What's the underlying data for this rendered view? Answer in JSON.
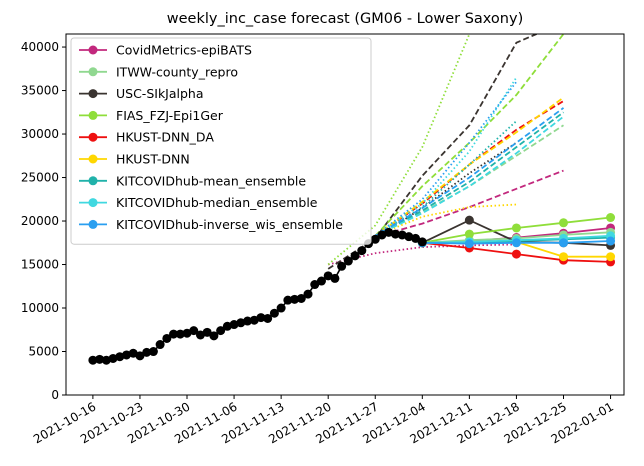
{
  "chart_data": {
    "type": "line",
    "title": "weekly_inc_case forecast (GM06 - Lower Saxony)",
    "xlabel": "",
    "ylabel": "",
    "ylim": [
      0,
      41500
    ],
    "xlim_days": [
      "2021-10-12",
      "2022-01-03"
    ],
    "x_ticks": [
      "2021-10-16",
      "2021-10-23",
      "2021-10-30",
      "2021-11-06",
      "2021-11-13",
      "2021-11-20",
      "2021-11-27",
      "2021-12-04",
      "2021-12-11",
      "2021-12-18",
      "2021-12-25",
      "2022-01-01"
    ],
    "y_ticks": [
      0,
      5000,
      10000,
      15000,
      20000,
      25000,
      30000,
      35000,
      40000
    ],
    "grid": false,
    "legend_position": "upper-left",
    "truth": {
      "color": "#000000",
      "points": [
        [
          "2021-10-16",
          4000
        ],
        [
          "2021-10-17",
          4100
        ],
        [
          "2021-10-18",
          4000
        ],
        [
          "2021-10-19",
          4200
        ],
        [
          "2021-10-20",
          4400
        ],
        [
          "2021-10-21",
          4600
        ],
        [
          "2021-10-22",
          4800
        ],
        [
          "2021-10-23",
          4500
        ],
        [
          "2021-10-24",
          4900
        ],
        [
          "2021-10-25",
          5000
        ],
        [
          "2021-10-26",
          5800
        ],
        [
          "2021-10-27",
          6500
        ],
        [
          "2021-10-28",
          7000
        ],
        [
          "2021-10-29",
          7000
        ],
        [
          "2021-10-30",
          7100
        ],
        [
          "2021-10-31",
          7400
        ],
        [
          "2021-11-01",
          6900
        ],
        [
          "2021-11-02",
          7200
        ],
        [
          "2021-11-03",
          6800
        ],
        [
          "2021-11-04",
          7400
        ],
        [
          "2021-11-05",
          7900
        ],
        [
          "2021-11-06",
          8100
        ],
        [
          "2021-11-07",
          8300
        ],
        [
          "2021-11-08",
          8500
        ],
        [
          "2021-11-09",
          8600
        ],
        [
          "2021-11-10",
          8900
        ],
        [
          "2021-11-11",
          8800
        ],
        [
          "2021-11-12",
          9400
        ],
        [
          "2021-11-13",
          10000
        ],
        [
          "2021-11-14",
          10900
        ],
        [
          "2021-11-15",
          11000
        ],
        [
          "2021-11-16",
          11100
        ],
        [
          "2021-11-17",
          11600
        ],
        [
          "2021-11-18",
          12700
        ],
        [
          "2021-11-19",
          13100
        ],
        [
          "2021-11-20",
          13700
        ],
        [
          "2021-11-21",
          13400
        ],
        [
          "2021-11-22",
          14800
        ],
        [
          "2021-11-23",
          15400
        ],
        [
          "2021-11-24",
          16000
        ],
        [
          "2021-11-25",
          16600
        ],
        [
          "2021-11-26",
          17400
        ],
        [
          "2021-11-27",
          17900
        ],
        [
          "2021-11-28",
          18400
        ],
        [
          "2021-11-29",
          18700
        ],
        [
          "2021-11-30",
          18500
        ],
        [
          "2021-12-01",
          18400
        ],
        [
          "2021-12-02",
          18200
        ],
        [
          "2021-12-03",
          18000
        ],
        [
          "2021-12-04",
          17600
        ]
      ]
    },
    "series": [
      {
        "name": "CovidMetrics-epiBATS",
        "color": "#c2287d",
        "actual": [
          [
            "2021-12-04",
            17500
          ],
          [
            "2021-12-11",
            17700
          ],
          [
            "2021-12-18",
            18100
          ],
          [
            "2021-12-25",
            18600
          ],
          [
            "2022-01-01",
            19200
          ]
        ],
        "dashed": [
          [
            "2021-11-27",
            18200
          ],
          [
            "2021-12-04",
            19700
          ],
          [
            "2021-12-11",
            21600
          ],
          [
            "2021-12-18",
            23700
          ],
          [
            "2021-12-25",
            25800
          ]
        ],
        "dotted": [
          [
            "2021-11-20",
            15000
          ],
          [
            "2021-11-27",
            16300
          ],
          [
            "2021-12-04",
            17000
          ],
          [
            "2021-12-11",
            17200
          ],
          [
            "2021-12-18",
            17300
          ]
        ]
      },
      {
        "name": "ITWW-county_repro",
        "color": "#90d890",
        "actual": [
          [
            "2021-12-04",
            17500
          ],
          [
            "2021-12-11",
            17800
          ],
          [
            "2021-12-18",
            18000
          ],
          [
            "2021-12-25",
            18400
          ],
          [
            "2022-01-01",
            18700
          ]
        ],
        "dashed": [
          [
            "2021-11-27",
            18300
          ],
          [
            "2021-12-04",
            21000
          ],
          [
            "2021-12-11",
            24000
          ],
          [
            "2021-12-18",
            27500
          ],
          [
            "2021-12-25",
            31000
          ]
        ],
        "dotted": []
      },
      {
        "name": "USC-SIkJalpha",
        "color": "#3a3430",
        "actual": [
          [
            "2021-12-04",
            17500
          ],
          [
            "2021-12-11",
            20100
          ],
          [
            "2021-12-18",
            17600
          ],
          [
            "2021-12-25",
            17500
          ],
          [
            "2022-01-01",
            17200
          ]
        ],
        "dashed": [
          [
            "2021-11-20",
            14500
          ],
          [
            "2021-11-27",
            18000
          ],
          [
            "2021-12-04",
            25200
          ],
          [
            "2021-12-11",
            31000
          ],
          [
            "2021-12-18",
            40500
          ],
          [
            "2021-12-21",
            41500
          ]
        ],
        "dotted": [
          [
            "2021-11-27",
            18000
          ],
          [
            "2021-12-04",
            21500
          ],
          [
            "2021-12-11",
            25500
          ],
          [
            "2021-12-18",
            29000
          ]
        ]
      },
      {
        "name": "FIAS_FZJ-Epi1Ger",
        "color": "#8fde3a",
        "actual": [
          [
            "2021-12-04",
            17500
          ],
          [
            "2021-12-11",
            18500
          ],
          [
            "2021-12-18",
            19200
          ],
          [
            "2021-12-25",
            19800
          ],
          [
            "2022-01-01",
            20400
          ]
        ],
        "dashed": [
          [
            "2021-11-27",
            18300
          ],
          [
            "2021-12-04",
            24000
          ],
          [
            "2021-12-11",
            29000
          ],
          [
            "2021-12-18",
            34500
          ],
          [
            "2021-12-25",
            41500
          ]
        ],
        "dotted": [
          [
            "2021-11-20",
            15000
          ],
          [
            "2021-11-27",
            19500
          ],
          [
            "2021-12-04",
            28500
          ],
          [
            "2021-12-11",
            41500
          ]
        ]
      },
      {
        "name": "HKUST-DNN_DA",
        "color": "#ee1010",
        "actual": [
          [
            "2021-12-04",
            17500
          ],
          [
            "2021-12-11",
            16900
          ],
          [
            "2021-12-18",
            16200
          ],
          [
            "2021-12-25",
            15500
          ],
          [
            "2022-01-01",
            15300
          ]
        ],
        "dashed": [
          [
            "2021-11-27",
            18300
          ],
          [
            "2021-12-04",
            22000
          ],
          [
            "2021-12-11",
            26500
          ],
          [
            "2021-12-18",
            30500
          ],
          [
            "2021-12-25",
            33800
          ]
        ],
        "dotted": []
      },
      {
        "name": "HKUST-DNN",
        "color": "#ffd700",
        "actual": [
          [
            "2021-12-04",
            17500
          ],
          [
            "2021-12-11",
            17500
          ],
          [
            "2021-12-18",
            17600
          ],
          [
            "2021-12-25",
            15900
          ],
          [
            "2022-01-01",
            15900
          ]
        ],
        "dashed": [
          [
            "2021-11-27",
            18300
          ],
          [
            "2021-12-04",
            22200
          ],
          [
            "2021-12-11",
            26500
          ],
          [
            "2021-12-18",
            30200
          ],
          [
            "2021-12-25",
            34200
          ]
        ],
        "dotted": [
          [
            "2021-11-27",
            18300
          ],
          [
            "2021-12-04",
            20500
          ],
          [
            "2021-12-11",
            21600
          ],
          [
            "2021-12-18",
            21900
          ]
        ]
      },
      {
        "name": "KITCOVIDhub-mean_ensemble",
        "color": "#20b2aa",
        "actual": [
          [
            "2021-12-04",
            17500
          ],
          [
            "2021-12-11",
            17500
          ],
          [
            "2021-12-18",
            17700
          ],
          [
            "2021-12-25",
            17900
          ],
          [
            "2022-01-01",
            18100
          ]
        ],
        "dashed": [
          [
            "2021-11-27",
            18300
          ],
          [
            "2021-12-04",
            21200
          ],
          [
            "2021-12-11",
            24500
          ],
          [
            "2021-12-18",
            28500
          ],
          [
            "2021-12-25",
            32500
          ]
        ],
        "dotted": [
          [
            "2021-11-27",
            18300
          ],
          [
            "2021-12-04",
            21600
          ],
          [
            "2021-12-11",
            26500
          ],
          [
            "2021-12-18",
            31500
          ]
        ]
      },
      {
        "name": "KITCOVIDhub-median_ensemble",
        "color": "#40d8e0",
        "actual": [
          [
            "2021-12-04",
            17500
          ],
          [
            "2021-12-11",
            17600
          ],
          [
            "2021-12-18",
            17800
          ],
          [
            "2021-12-25",
            18000
          ],
          [
            "2022-01-01",
            18300
          ]
        ],
        "dashed": [
          [
            "2021-11-27",
            18300
          ],
          [
            "2021-12-04",
            20900
          ],
          [
            "2021-12-11",
            24000
          ],
          [
            "2021-12-18",
            27800
          ],
          [
            "2021-12-25",
            32000
          ]
        ],
        "dotted": [
          [
            "2021-11-27",
            18300
          ],
          [
            "2021-12-04",
            22000
          ],
          [
            "2021-12-11",
            28000
          ],
          [
            "2021-12-18",
            36500
          ]
        ]
      },
      {
        "name": "KITCOVIDhub-inverse_wis_ensemble",
        "color": "#2a9ff0",
        "actual": [
          [
            "2021-12-04",
            17500
          ],
          [
            "2021-12-11",
            17400
          ],
          [
            "2021-12-18",
            17500
          ],
          [
            "2021-12-25",
            17500
          ],
          [
            "2022-01-01",
            17700
          ]
        ],
        "dashed": [
          [
            "2021-11-27",
            18300
          ],
          [
            "2021-12-04",
            21500
          ],
          [
            "2021-12-11",
            25000
          ],
          [
            "2021-12-18",
            29000
          ],
          [
            "2021-12-25",
            33000
          ]
        ],
        "dotted": [
          [
            "2021-11-27",
            18300
          ],
          [
            "2021-12-04",
            22500
          ],
          [
            "2021-12-11",
            29000
          ],
          [
            "2021-12-18",
            36000
          ]
        ]
      }
    ]
  }
}
